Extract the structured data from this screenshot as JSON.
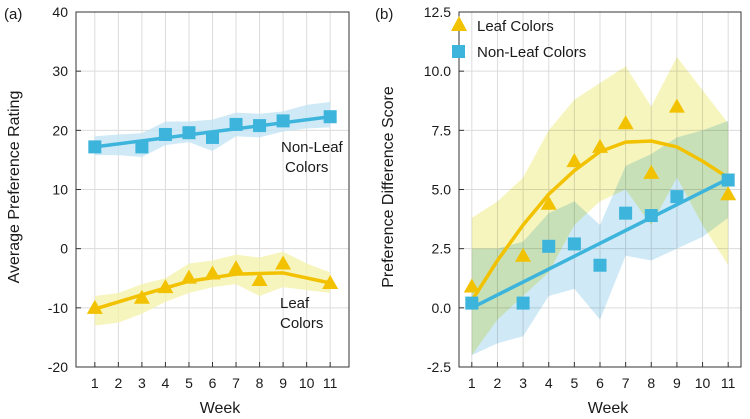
{
  "colors": {
    "leaf": "#f2c200",
    "leaf_band": "#f4f2a8",
    "nonleaf": "#3db4dc",
    "nonleaf_band": "#bfe3f3",
    "overlap_band": "#cfe6bf",
    "grid": "#dcdcdc",
    "axis": "#333333"
  },
  "chart_data": [
    {
      "type": "scatter",
      "panel_label": "(a)",
      "xlabel": "Week",
      "ylabel": "Average Preference Rating",
      "xlim": [
        0.2,
        11.8
      ],
      "ylim": [
        -20,
        40
      ],
      "xticks": [
        "1",
        "2",
        "3",
        "4",
        "5",
        "6",
        "7",
        "8",
        "9",
        "10",
        "11"
      ],
      "yticks": [
        "-20",
        "-10",
        "0",
        "10",
        "20",
        "30",
        "40"
      ],
      "grid": true,
      "series": [
        {
          "name": "Non-Leaf Colors",
          "marker": "square",
          "annotation": [
            "Non-Leaf",
            "Colors"
          ],
          "x": [
            1,
            3,
            4,
            5,
            6,
            7,
            8,
            9,
            11
          ],
          "y": [
            17.2,
            17.2,
            19.3,
            19.6,
            18.8,
            21.0,
            20.8,
            21.6,
            22.3
          ],
          "fit": [
            [
              1,
              17.2
            ],
            [
              11,
              22.3
            ]
          ],
          "band_x": [
            1,
            2,
            3,
            4,
            5,
            6,
            7,
            8,
            9,
            10,
            11
          ],
          "band_upper": [
            19.0,
            19.3,
            19.5,
            21.5,
            21.5,
            21.8,
            23.0,
            22.8,
            23.2,
            24.3,
            24.8
          ],
          "band_lower": [
            15.8,
            15.8,
            15.5,
            17.5,
            18.0,
            16.5,
            19.0,
            18.8,
            19.8,
            20.3,
            20.5
          ]
        },
        {
          "name": "Leaf Colors",
          "marker": "triangle",
          "annotation": [
            "Leaf",
            "Colors"
          ],
          "x": [
            1,
            3,
            4,
            5,
            6,
            7,
            8,
            9,
            11
          ],
          "y": [
            -10.0,
            -8.3,
            -6.5,
            -4.9,
            -4.2,
            -3.3,
            -5.3,
            -2.5,
            -5.8
          ],
          "fit": [
            [
              1,
              -10.2
            ],
            [
              3,
              -7.8
            ],
            [
              5,
              -5.5
            ],
            [
              7,
              -4.3
            ],
            [
              9,
              -4.1
            ],
            [
              11,
              -5.8
            ]
          ],
          "band_x": [
            1,
            2,
            3,
            4,
            5,
            6,
            7,
            8,
            9,
            10,
            11
          ],
          "band_upper": [
            -8.0,
            -7.5,
            -6.0,
            -5.0,
            -2.5,
            -2.0,
            -1.0,
            -1.5,
            -0.5,
            -2.5,
            -4.0
          ],
          "band_lower": [
            -13.0,
            -12.5,
            -11.0,
            -9.0,
            -7.5,
            -6.5,
            -6.0,
            -8.0,
            -6.5,
            -7.0,
            -7.5
          ]
        }
      ]
    },
    {
      "type": "scatter",
      "panel_label": "(b)",
      "xlabel": "Week",
      "ylabel": "Preference Difference Score",
      "xlim": [
        0.5,
        11.5
      ],
      "ylim": [
        -2.5,
        12.5
      ],
      "xticks": [
        "1",
        "2",
        "3",
        "4",
        "5",
        "6",
        "7",
        "8",
        "9",
        "10",
        "11"
      ],
      "yticks": [
        "-2.5",
        "0.0",
        "2.5",
        "5.0",
        "7.5",
        "10.0",
        "12.5"
      ],
      "grid": true,
      "legend": "top-left",
      "series": [
        {
          "name": "Leaf Colors",
          "marker": "triangle",
          "x": [
            1,
            3,
            4,
            5,
            6,
            7,
            8,
            9,
            11
          ],
          "y": [
            0.9,
            2.2,
            4.4,
            6.2,
            6.8,
            7.8,
            5.7,
            8.5,
            4.8
          ],
          "fit": [
            [
              1,
              0.3
            ],
            [
              2,
              2.0
            ],
            [
              3,
              3.5
            ],
            [
              4,
              4.8
            ],
            [
              5,
              5.8
            ],
            [
              6,
              6.6
            ],
            [
              7,
              7.0
            ],
            [
              8,
              7.05
            ],
            [
              9,
              6.8
            ],
            [
              10,
              6.2
            ],
            [
              11,
              5.5
            ]
          ],
          "band_x": [
            1,
            2,
            3,
            4,
            5,
            6,
            7,
            8,
            9,
            10,
            11
          ],
          "band_upper": [
            3.8,
            4.5,
            5.5,
            7.5,
            8.8,
            9.5,
            10.2,
            8.5,
            10.6,
            9.2,
            7.8
          ],
          "band_lower": [
            -2.0,
            -0.5,
            0.5,
            1.5,
            3.5,
            4.5,
            5.0,
            3.5,
            5.5,
            3.5,
            1.8
          ]
        },
        {
          "name": "Non-Leaf Colors",
          "marker": "square",
          "x": [
            1,
            3,
            4,
            5,
            6,
            7,
            8,
            9,
            11
          ],
          "y": [
            0.2,
            0.2,
            2.6,
            2.7,
            1.8,
            4.0,
            3.9,
            4.7,
            5.4
          ],
          "fit": [
            [
              1,
              0.0
            ],
            [
              11,
              5.45
            ]
          ],
          "band_x": [
            1,
            2,
            3,
            4,
            5,
            6,
            7,
            8,
            9,
            10,
            11
          ],
          "band_upper": [
            2.5,
            2.5,
            2.8,
            4.0,
            4.5,
            3.5,
            6.0,
            6.5,
            7.2,
            7.5,
            7.9
          ],
          "band_lower": [
            -2.0,
            -1.5,
            -1.2,
            0.5,
            0.8,
            -0.5,
            2.2,
            2.0,
            2.5,
            3.0,
            3.8
          ]
        }
      ]
    }
  ]
}
